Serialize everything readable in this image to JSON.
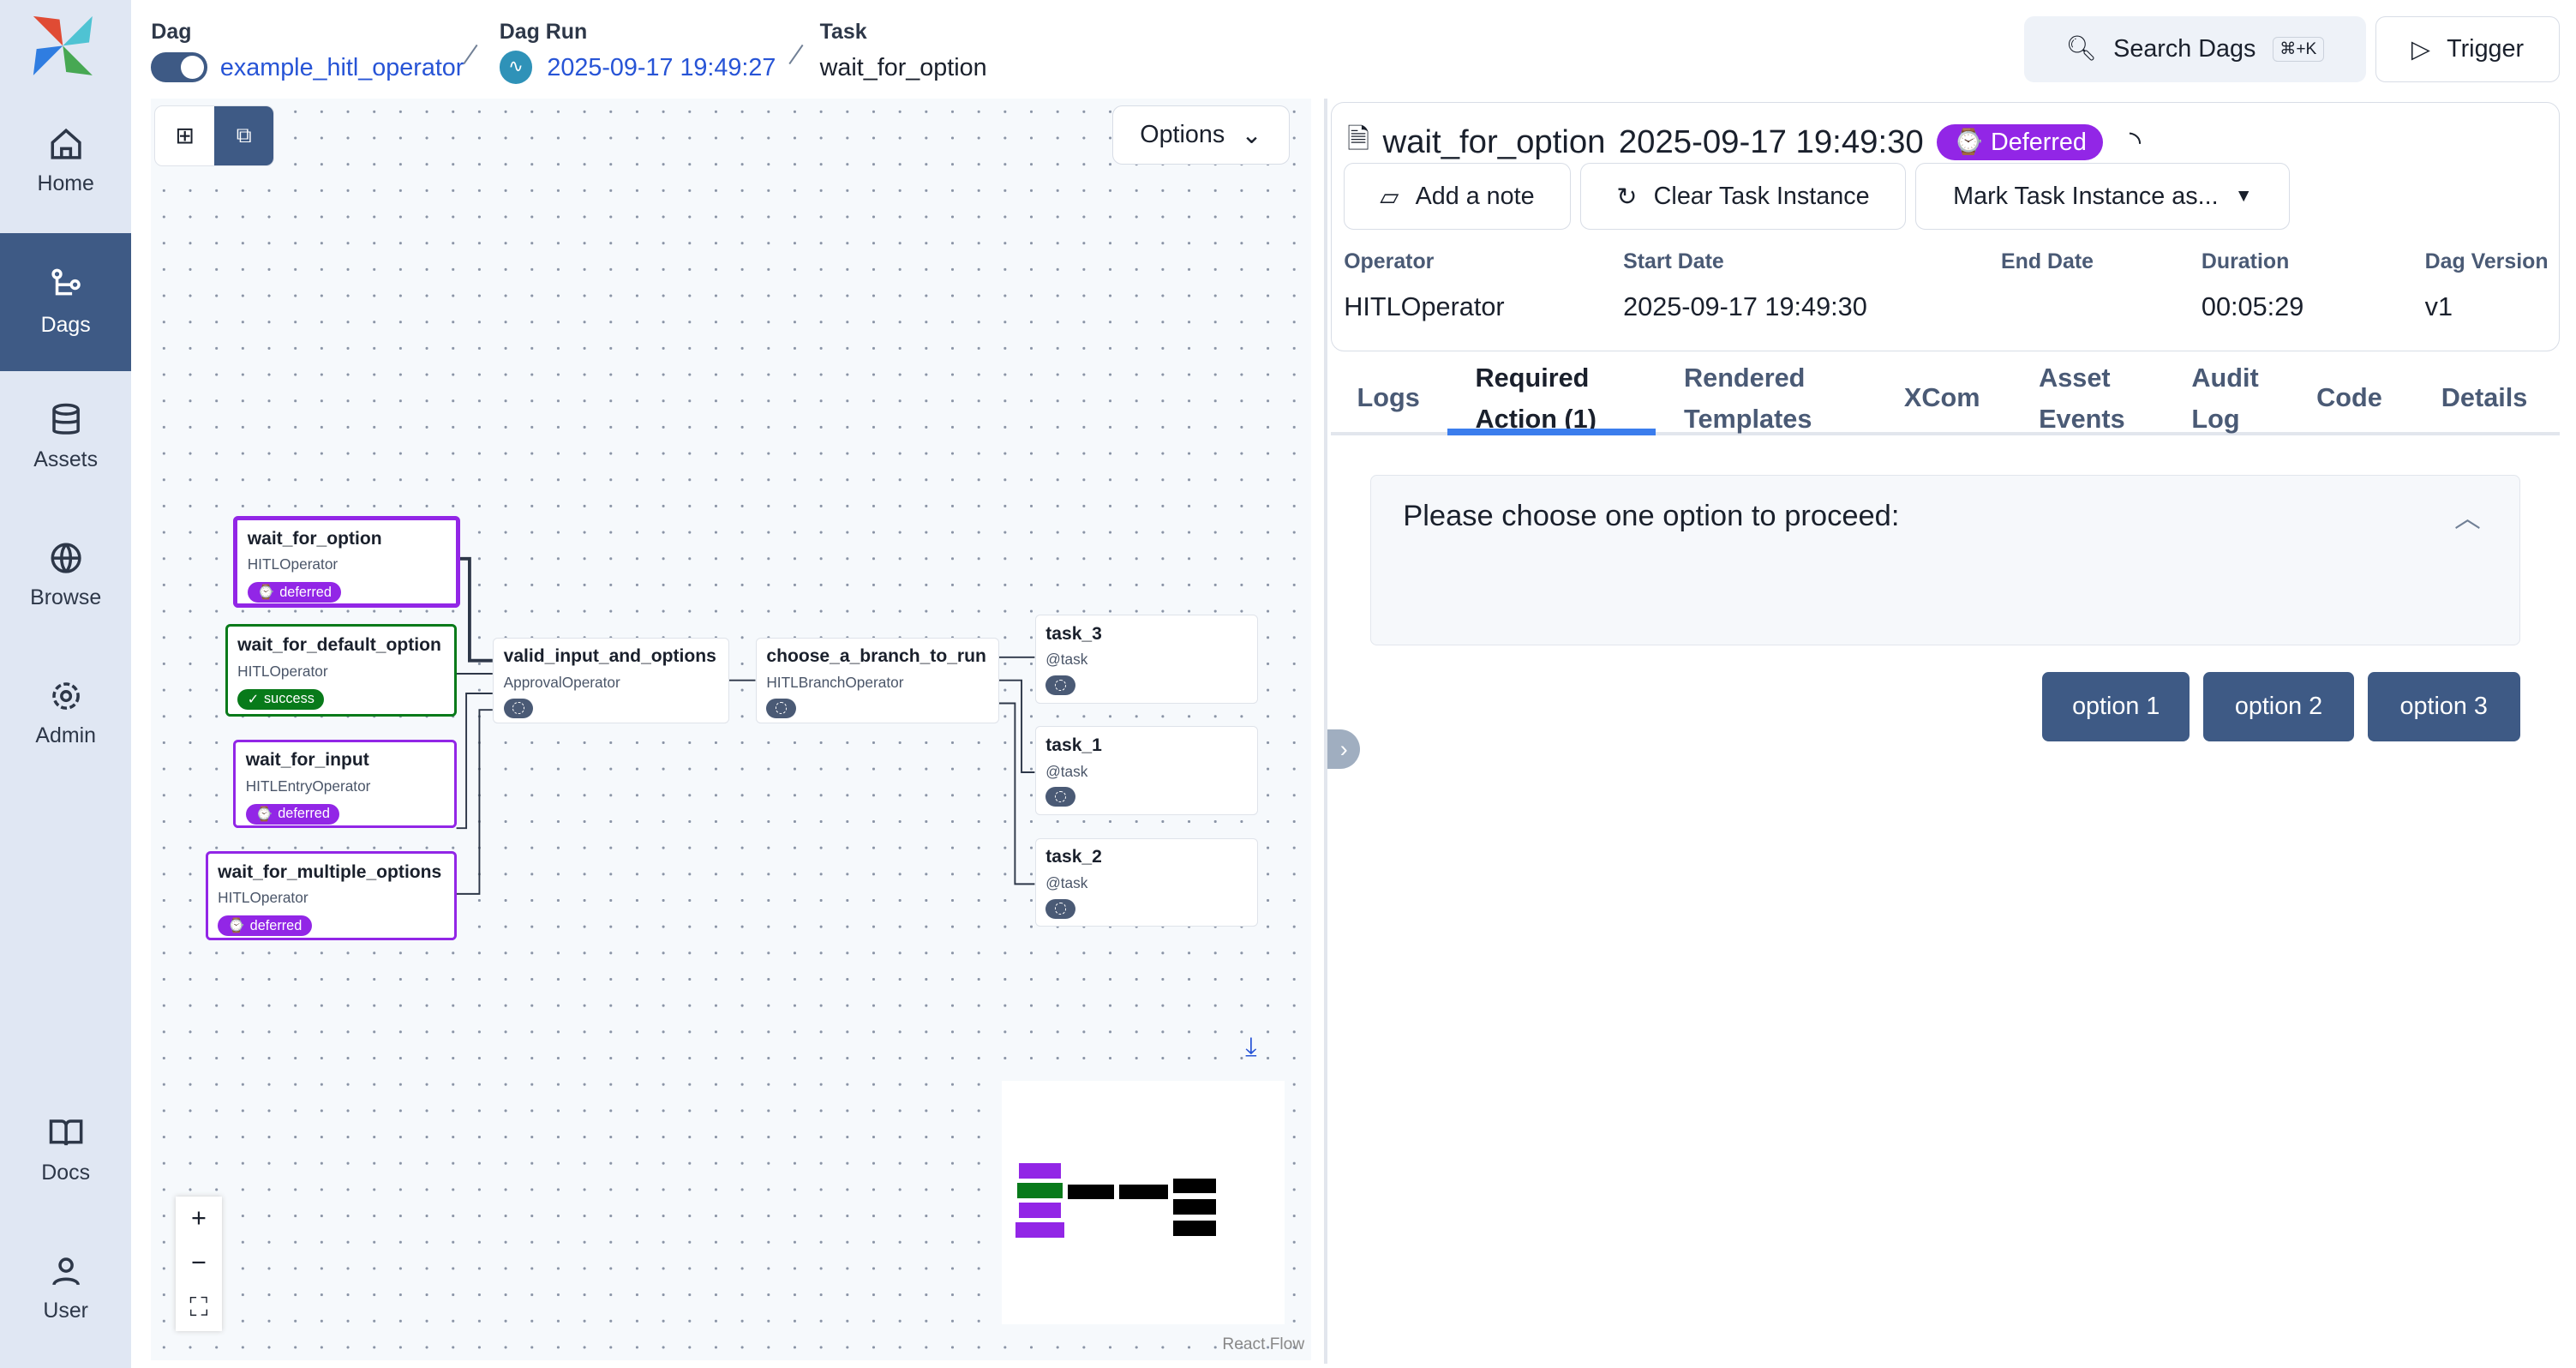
{
  "sidebar": {
    "items": [
      {
        "label": "Home",
        "icon": "home-icon"
      },
      {
        "label": "Dags",
        "icon": "dags-icon",
        "active": true
      },
      {
        "label": "Assets",
        "icon": "database-icon"
      },
      {
        "label": "Browse",
        "icon": "globe-icon"
      },
      {
        "label": "Admin",
        "icon": "gear-icon"
      },
      {
        "label": "Docs",
        "icon": "book-icon"
      },
      {
        "label": "User",
        "icon": "user-icon"
      }
    ]
  },
  "breadcrumb": {
    "dag_label": "Dag",
    "dag_value": "example_hitl_operator",
    "run_label": "Dag Run",
    "run_value": "2025-09-17 19:49:27",
    "task_label": "Task",
    "task_value": "wait_for_option"
  },
  "header": {
    "search_label": "Search Dags",
    "search_shortcut": "⌘+K",
    "trigger_label": "Trigger"
  },
  "graph": {
    "options_label": "Options",
    "watermark": "React Flow",
    "nodes": [
      {
        "name": "wait_for_option",
        "operator": "HITLOperator",
        "state": "deferred"
      },
      {
        "name": "wait_for_default_option",
        "operator": "HITLOperator",
        "state": "success"
      },
      {
        "name": "wait_for_input",
        "operator": "HITLEntryOperator",
        "state": "deferred"
      },
      {
        "name": "wait_for_multiple_options",
        "operator": "HITLOperator",
        "state": "deferred"
      },
      {
        "name": "valid_input_and_options",
        "operator": "ApprovalOperator"
      },
      {
        "name": "choose_a_branch_to_run",
        "operator": "HITLBranchOperator"
      },
      {
        "name": "task_3",
        "operator": "@task"
      },
      {
        "name": "task_1",
        "operator": "@task"
      },
      {
        "name": "task_2",
        "operator": "@task"
      }
    ],
    "colors": {
      "deferred": "#9226e6",
      "success": "#087a1a"
    }
  },
  "panel": {
    "title": "wait_for_option",
    "date": "2025-09-17 19:49:30",
    "state": "Deferred",
    "buttons": {
      "note": "Add a note",
      "clear": "Clear Task Instance",
      "mark": "Mark Task Instance as..."
    },
    "meta": [
      {
        "label": "Operator",
        "value": "HITLOperator"
      },
      {
        "label": "Start Date",
        "value": "2025-09-17 19:49:30"
      },
      {
        "label": "End Date",
        "value": ""
      },
      {
        "label": "Duration",
        "value": "00:05:29"
      },
      {
        "label": "Dag Version",
        "value": "v1"
      }
    ],
    "tabs": [
      "Logs",
      "Required Action (1)",
      "Rendered Templates",
      "XCom",
      "Asset Events",
      "Audit Log",
      "Code",
      "Details"
    ],
    "active_tab": "Required Action (1)",
    "prompt": "Please choose one option to proceed:",
    "options": [
      "option 1",
      "option 2",
      "option 3"
    ]
  }
}
